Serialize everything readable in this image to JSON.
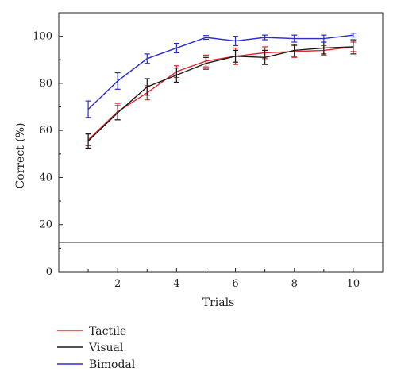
{
  "chart_data": {
    "type": "line",
    "xlabel": "Trials",
    "ylabel": "Correct (%)",
    "xlim": [
      0,
      11
    ],
    "ylim": [
      0,
      110
    ],
    "x_ticks": [
      2,
      4,
      6,
      8,
      10
    ],
    "y_ticks": [
      0,
      20,
      40,
      60,
      80,
      100
    ],
    "x": [
      1,
      2,
      3,
      4,
      5,
      6,
      7,
      8,
      9,
      10
    ],
    "reference_line": 12.5,
    "legend_position": "bottom-left",
    "grid": false,
    "series": [
      {
        "name": "Tactile",
        "color": "#e8262c",
        "values": [
          56,
          68,
          76,
          85,
          89.5,
          91.5,
          93,
          93.5,
          94,
          95.5
        ],
        "errors": [
          2.5,
          3.5,
          3,
          2.5,
          2.5,
          3.5,
          2.5,
          2.5,
          2,
          2
        ]
      },
      {
        "name": "Visual",
        "color": "#1a1a1a",
        "values": [
          55.5,
          67.5,
          78.5,
          83.5,
          88.5,
          91.5,
          91,
          94,
          95,
          95.5
        ],
        "errors": [
          3,
          3,
          3.5,
          3,
          2.5,
          2.5,
          3,
          2.5,
          2.5,
          3
        ]
      },
      {
        "name": "Bimodal",
        "color": "#2b2bd1",
        "values": [
          69,
          81,
          90.5,
          95,
          99.5,
          98,
          99.5,
          99,
          99,
          100.5
        ],
        "errors": [
          3.5,
          3.5,
          2,
          2,
          0.8,
          2,
          1,
          1.5,
          1.5,
          0.8
        ]
      }
    ]
  }
}
